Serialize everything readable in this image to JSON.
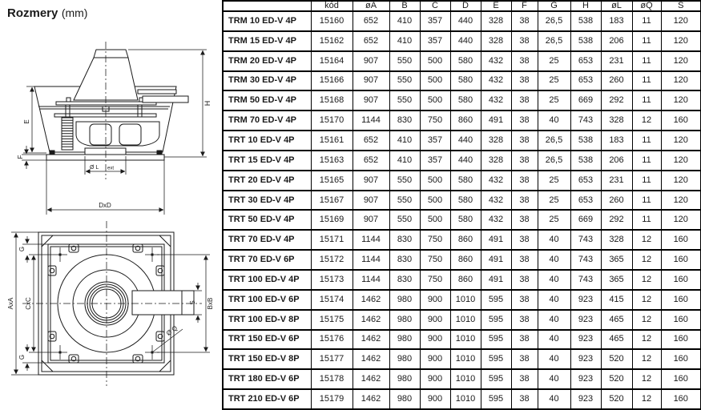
{
  "title": {
    "main": "Rozmery",
    "unit": "(mm)"
  },
  "drawing": {
    "side": {
      "e": "E",
      "f": "F",
      "h": "H",
      "diameter_l": "Ø L",
      "diameter_l_suffix": "ext",
      "dxd": "DxD"
    },
    "plan": {
      "axa": "AxA",
      "cxc": "CxC",
      "g_top": "G",
      "g_bottom": "G",
      "bxb": "BxB",
      "s": "S",
      "diameter_q": "Ø Q"
    }
  },
  "table": {
    "columns": [
      "",
      "kód",
      "øA",
      "B",
      "C",
      "D",
      "E",
      "F",
      "G",
      "H",
      "øL",
      "øQ",
      "S"
    ],
    "rows": [
      {
        "model": "TRM 10 ED-V 4P",
        "values": [
          "15160",
          "652",
          "410",
          "357",
          "440",
          "328",
          "38",
          "26,5",
          "538",
          "183",
          "11",
          "120"
        ]
      },
      {
        "model": "TRM 15 ED-V 4P",
        "values": [
          "15162",
          "652",
          "410",
          "357",
          "440",
          "328",
          "38",
          "26,5",
          "538",
          "206",
          "11",
          "120"
        ]
      },
      {
        "model": "TRM 20 ED-V 4P",
        "values": [
          "15164",
          "907",
          "550",
          "500",
          "580",
          "432",
          "38",
          "25",
          "653",
          "231",
          "11",
          "120"
        ]
      },
      {
        "model": "TRM 30 ED-V 4P",
        "values": [
          "15166",
          "907",
          "550",
          "500",
          "580",
          "432",
          "38",
          "25",
          "653",
          "260",
          "11",
          "120"
        ]
      },
      {
        "model": "TRM 50 ED-V 4P",
        "values": [
          "15168",
          "907",
          "550",
          "500",
          "580",
          "432",
          "38",
          "25",
          "669",
          "292",
          "11",
          "120"
        ]
      },
      {
        "model": "TRM 70 ED-V 4P",
        "values": [
          "15170",
          "1144",
          "830",
          "750",
          "860",
          "491",
          "38",
          "40",
          "743",
          "328",
          "12",
          "160"
        ]
      },
      {
        "model": "TRT 10 ED-V 4P",
        "values": [
          "15161",
          "652",
          "410",
          "357",
          "440",
          "328",
          "38",
          "26,5",
          "538",
          "183",
          "11",
          "120"
        ]
      },
      {
        "model": "TRT 15 ED-V 4P",
        "values": [
          "15163",
          "652",
          "410",
          "357",
          "440",
          "328",
          "38",
          "26,5",
          "538",
          "206",
          "11",
          "120"
        ]
      },
      {
        "model": "TRT 20 ED-V 4P",
        "values": [
          "15165",
          "907",
          "550",
          "500",
          "580",
          "432",
          "38",
          "25",
          "653",
          "231",
          "11",
          "120"
        ]
      },
      {
        "model": "TRT 30 ED-V 4P",
        "values": [
          "15167",
          "907",
          "550",
          "500",
          "580",
          "432",
          "38",
          "25",
          "653",
          "260",
          "11",
          "120"
        ]
      },
      {
        "model": "TRT 50 ED-V 4P",
        "values": [
          "15169",
          "907",
          "550",
          "500",
          "580",
          "432",
          "38",
          "25",
          "669",
          "292",
          "11",
          "120"
        ]
      },
      {
        "model": "TRT 70 ED-V 4P",
        "values": [
          "15171",
          "1144",
          "830",
          "750",
          "860",
          "491",
          "38",
          "40",
          "743",
          "328",
          "12",
          "160"
        ]
      },
      {
        "model": "TRT 70 ED-V 6P",
        "values": [
          "15172",
          "1144",
          "830",
          "750",
          "860",
          "491",
          "38",
          "40",
          "743",
          "365",
          "12",
          "160"
        ]
      },
      {
        "model": "TRT 100 ED-V 4P",
        "values": [
          "15173",
          "1144",
          "830",
          "750",
          "860",
          "491",
          "38",
          "40",
          "743",
          "365",
          "12",
          "160"
        ]
      },
      {
        "model": "TRT 100 ED-V 6P",
        "values": [
          "15174",
          "1462",
          "980",
          "900",
          "1010",
          "595",
          "38",
          "40",
          "923",
          "415",
          "12",
          "160"
        ]
      },
      {
        "model": "TRT 100 ED-V 8P",
        "values": [
          "15175",
          "1462",
          "980",
          "900",
          "1010",
          "595",
          "38",
          "40",
          "923",
          "465",
          "12",
          "160"
        ]
      },
      {
        "model": "TRT 150 ED-V 6P",
        "values": [
          "15176",
          "1462",
          "980",
          "900",
          "1010",
          "595",
          "38",
          "40",
          "923",
          "465",
          "12",
          "160"
        ]
      },
      {
        "model": "TRT 150 ED-V 8P",
        "values": [
          "15177",
          "1462",
          "980",
          "900",
          "1010",
          "595",
          "38",
          "40",
          "923",
          "520",
          "12",
          "160"
        ]
      },
      {
        "model": "TRT 180 ED-V 6P",
        "values": [
          "15178",
          "1462",
          "980",
          "900",
          "1010",
          "595",
          "38",
          "40",
          "923",
          "520",
          "12",
          "160"
        ]
      },
      {
        "model": "TRT 210 ED-V 6P",
        "values": [
          "15179",
          "1462",
          "980",
          "900",
          "1010",
          "595",
          "38",
          "40",
          "923",
          "520",
          "12",
          "160"
        ]
      }
    ]
  }
}
